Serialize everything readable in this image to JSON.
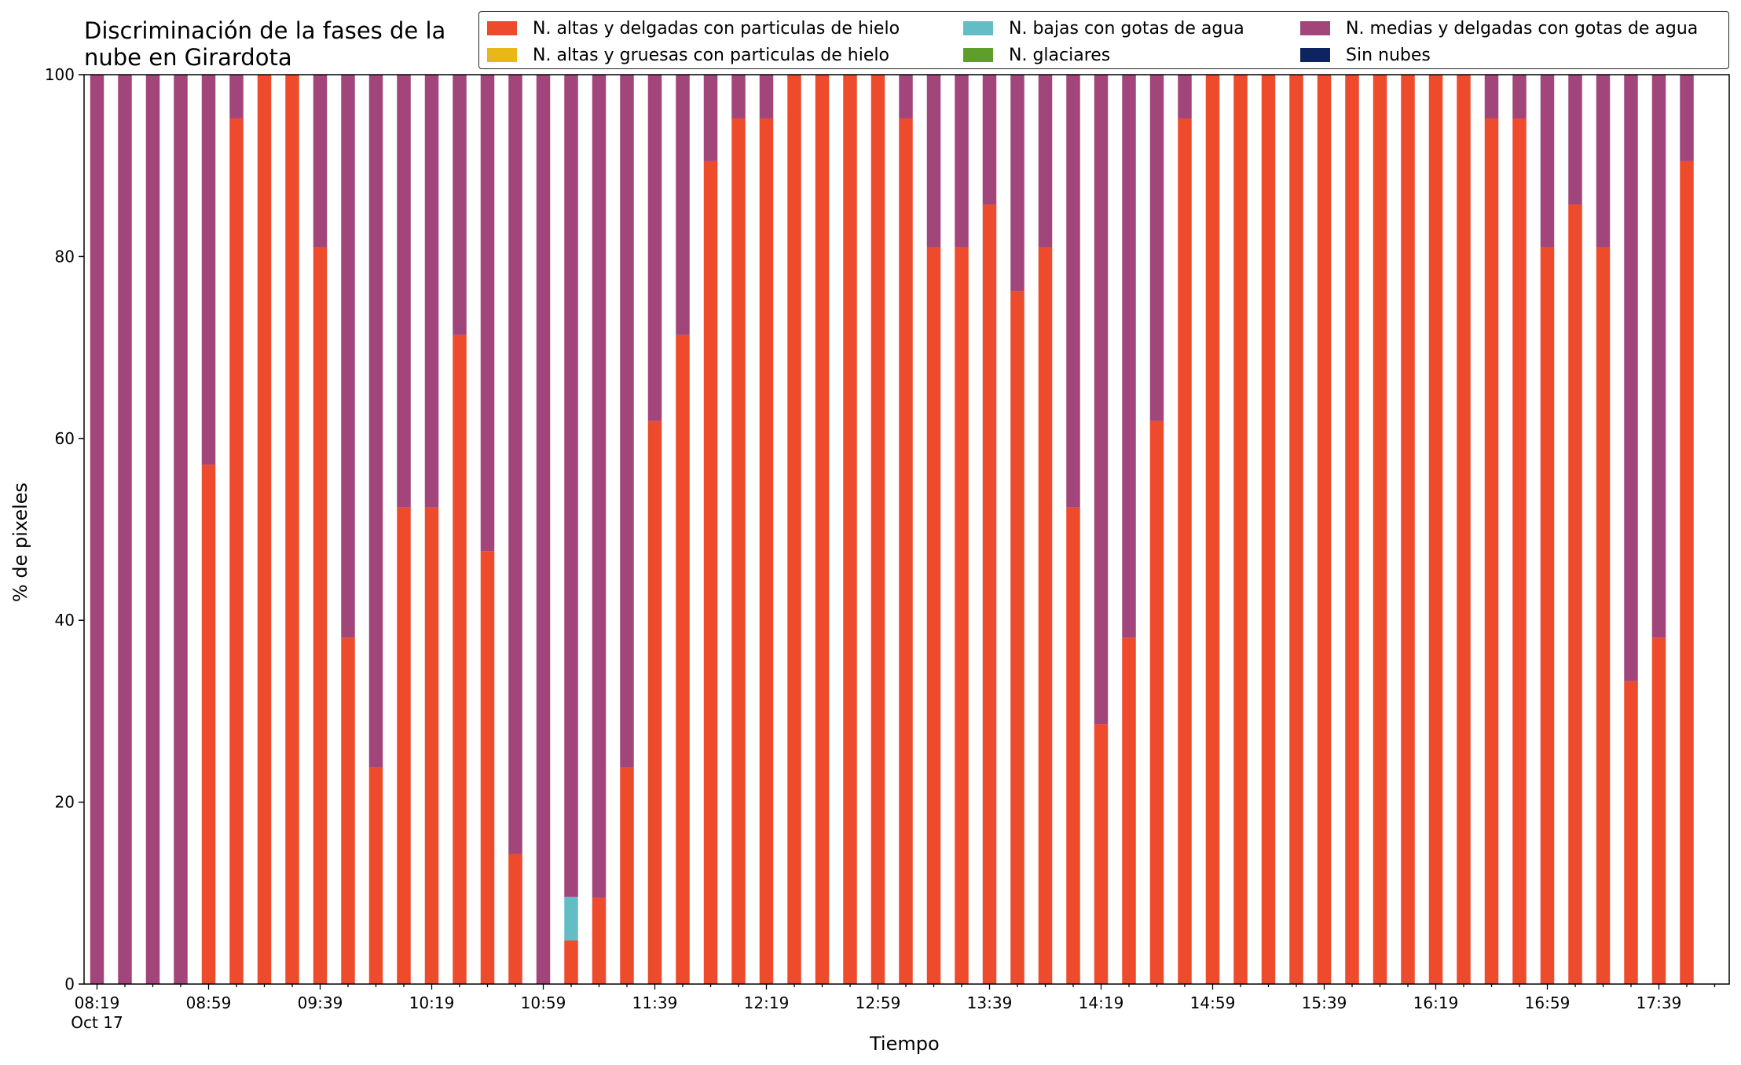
{
  "chart_data": {
    "type": "bar",
    "stacked": true,
    "title": "Discriminación de la fases de la\nnube en Girardota",
    "xlabel": "Tiempo",
    "ylabel": "% de pixeles",
    "ylim": [
      0,
      100
    ],
    "yticks": [
      0,
      20,
      40,
      60,
      80,
      100
    ],
    "xtick_labels": [
      "08:19\nOct 17",
      "08:59",
      "09:39",
      "10:19",
      "10:59",
      "11:39",
      "12:19",
      "12:59",
      "13:39",
      "14:19",
      "14:59",
      "15:39",
      "16:19",
      "16:59",
      "17:39"
    ],
    "grid": false,
    "legend_position": "top-right",
    "categories": [
      "08:19",
      "08:29",
      "08:39",
      "08:49",
      "08:59",
      "09:09",
      "09:19",
      "09:29",
      "09:39",
      "09:49",
      "09:59",
      "10:09",
      "10:19",
      "10:29",
      "10:39",
      "10:49",
      "10:59",
      "11:09",
      "11:19",
      "11:29",
      "11:39",
      "11:49",
      "11:59",
      "12:09",
      "12:19",
      "12:29",
      "12:39",
      "12:49",
      "12:59",
      "13:09",
      "13:19",
      "13:29",
      "13:39",
      "13:49",
      "13:59",
      "14:09",
      "14:19",
      "14:29",
      "14:39",
      "14:49",
      "14:59",
      "15:09",
      "15:19",
      "15:29",
      "15:39",
      "15:49",
      "15:59",
      "16:09",
      "16:19",
      "16:29",
      "16:39",
      "16:49",
      "16:59",
      "17:09",
      "17:19",
      "17:29",
      "17:39",
      "17:49"
    ],
    "series": [
      {
        "name": "N. altas y delgadas con particulas de hielo",
        "color": "#ee4a2c",
        "values": [
          0,
          0,
          0,
          0,
          57.1,
          95.2,
          100,
          100,
          81,
          38.1,
          23.8,
          52.4,
          52.4,
          71.4,
          47.6,
          14.3,
          0,
          4.8,
          9.5,
          23.8,
          61.9,
          71.4,
          90.5,
          95.2,
          95.2,
          100,
          100,
          100,
          100,
          95.2,
          81,
          81,
          85.7,
          76.2,
          81,
          52.4,
          28.6,
          38.1,
          61.9,
          95.2,
          100,
          100,
          100,
          100,
          100,
          100,
          100,
          100,
          100,
          100,
          95.2,
          95.2,
          81,
          85.7,
          81,
          33.3,
          38.1,
          90.5
        ]
      },
      {
        "name": "N. altas y gruesas con particulas de hielo",
        "color": "#e8b818",
        "values": [
          0,
          0,
          0,
          0,
          0,
          0,
          0,
          0,
          0,
          0,
          0,
          0,
          0,
          0,
          0,
          0,
          0,
          0,
          0,
          0,
          0,
          0,
          0,
          0,
          0,
          0,
          0,
          0,
          0,
          0,
          0,
          0,
          0,
          0,
          0,
          0,
          0,
          0,
          0,
          0,
          0,
          0,
          0,
          0,
          0,
          0,
          0,
          0,
          0,
          0,
          0,
          0,
          0,
          0,
          0,
          0,
          0,
          0
        ]
      },
      {
        "name": "N. bajas con gotas de agua",
        "color": "#63bdc6",
        "values": [
          0,
          0,
          0,
          0,
          0,
          0,
          0,
          0,
          0,
          0,
          0,
          0,
          0,
          0,
          0,
          0,
          0,
          4.8,
          0,
          0,
          0,
          0,
          0,
          0,
          0,
          0,
          0,
          0,
          0,
          0,
          0,
          0,
          0,
          0,
          0,
          0,
          0,
          0,
          0,
          0,
          0,
          0,
          0,
          0,
          0,
          0,
          0,
          0,
          0,
          0,
          0,
          0,
          0,
          0,
          0,
          0,
          0,
          0
        ]
      },
      {
        "name": "N. glaciares",
        "color": "#5e9e2a",
        "values": [
          0,
          0,
          0,
          0,
          0,
          0,
          0,
          0,
          0,
          0,
          0,
          0,
          0,
          0,
          0,
          0,
          0,
          0,
          0,
          0,
          0,
          0,
          0,
          0,
          0,
          0,
          0,
          0,
          0,
          0,
          0,
          0,
          0,
          0,
          0,
          0,
          0,
          0,
          0,
          0,
          0,
          0,
          0,
          0,
          0,
          0,
          0,
          0,
          0,
          0,
          0,
          0,
          0,
          0,
          0,
          0,
          0,
          0
        ]
      },
      {
        "name": "N. medias y delgadas con gotas de agua",
        "color": "#a2457a",
        "values": [
          100,
          100,
          100,
          100,
          42.9,
          4.8,
          0,
          0,
          19,
          61.9,
          76.2,
          47.6,
          47.6,
          28.6,
          52.4,
          85.7,
          100,
          90.4,
          90.5,
          76.2,
          38.1,
          28.6,
          9.5,
          4.8,
          4.8,
          0,
          0,
          0,
          0,
          4.8,
          19,
          19,
          14.3,
          23.8,
          19,
          47.6,
          71.4,
          61.9,
          38.1,
          4.8,
          0,
          0,
          0,
          0,
          0,
          0,
          0,
          0,
          0,
          0,
          4.8,
          4.8,
          19,
          14.3,
          19,
          66.7,
          61.9,
          9.5
        ]
      },
      {
        "name": "Sin nubes",
        "color": "#0e2460",
        "values": [
          0,
          0,
          0,
          0,
          0,
          0,
          0,
          0,
          0,
          0,
          0,
          0,
          0,
          0,
          0,
          0,
          0,
          0,
          0,
          0,
          0,
          0,
          0,
          0,
          0,
          0,
          0,
          0,
          0,
          0,
          0,
          0,
          0,
          0,
          0,
          0,
          0,
          0,
          0,
          0,
          0,
          0,
          0,
          0,
          0,
          0,
          0,
          0,
          0,
          0,
          0,
          0,
          0,
          0,
          0,
          0,
          0,
          0
        ]
      }
    ]
  }
}
